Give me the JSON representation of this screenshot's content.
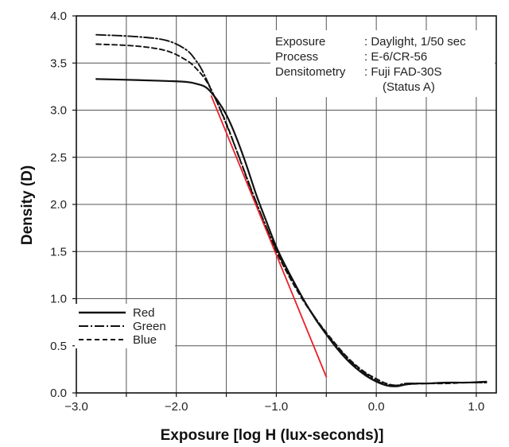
{
  "chart_data": {
    "type": "line",
    "title": "",
    "xlabel": "Exposure [log H (lux-seconds)]",
    "ylabel": "Density (D)",
    "xlim": [
      -3.0,
      1.2
    ],
    "ylim": [
      0.0,
      4.0
    ],
    "grid": true,
    "x_ticks": [
      "−3.0",
      "−2.0",
      "−1.0",
      "0.0",
      "1.0"
    ],
    "y_ticks": [
      "0.0",
      "0.5",
      "1.0",
      "1.5",
      "2.0",
      "2.5",
      "3.0",
      "3.5",
      "4.0"
    ],
    "legend_position": "bottom-left",
    "info_box": {
      "position": "top-right",
      "rows": [
        {
          "label": "Exposure",
          "value": ": Daylight, 1/50 sec"
        },
        {
          "label": "Process",
          "value": ": E-6/CR-56"
        },
        {
          "label": "Densitometry",
          "value": ": Fuji FAD-30S"
        },
        {
          "label": "",
          "value": "(Status A)"
        }
      ]
    },
    "series": [
      {
        "name": "Red",
        "color": "#111111",
        "dash": "solid",
        "x": [
          -2.8,
          -2.4,
          -2.1,
          -1.9,
          -1.8,
          -1.7,
          -1.6,
          -1.5,
          -1.4,
          -1.3,
          -1.2,
          -1.1,
          -1.0,
          -0.9,
          -0.8,
          -0.7,
          -0.6,
          -0.5,
          -0.4,
          -0.3,
          -0.2,
          -0.1,
          0.0,
          0.1,
          0.2,
          0.3,
          0.4,
          0.5,
          0.7,
          0.9,
          1.1
        ],
        "y": [
          3.33,
          3.32,
          3.31,
          3.3,
          3.28,
          3.24,
          3.12,
          2.95,
          2.71,
          2.42,
          2.1,
          1.82,
          1.55,
          1.33,
          1.13,
          0.94,
          0.77,
          0.62,
          0.48,
          0.36,
          0.26,
          0.18,
          0.12,
          0.08,
          0.07,
          0.09,
          0.1,
          0.1,
          0.11,
          0.11,
          0.12
        ]
      },
      {
        "name": "Green",
        "color": "#111111",
        "dash": "dashdot",
        "x": [
          -2.8,
          -2.4,
          -2.1,
          -1.9,
          -1.8,
          -1.75,
          -1.7,
          -1.6,
          -1.5,
          -1.4,
          -1.3,
          -1.2,
          -1.1,
          -1.0,
          -0.9,
          -0.8,
          -0.7,
          -0.6,
          -0.5,
          -0.4,
          -0.3,
          -0.2,
          -0.1,
          0.0,
          0.1,
          0.2,
          0.3,
          0.5,
          0.7,
          0.9,
          1.1
        ],
        "y": [
          3.8,
          3.78,
          3.74,
          3.64,
          3.52,
          3.44,
          3.33,
          3.1,
          2.85,
          2.58,
          2.3,
          2.02,
          1.76,
          1.52,
          1.31,
          1.12,
          0.94,
          0.78,
          0.63,
          0.5,
          0.38,
          0.28,
          0.2,
          0.13,
          0.09,
          0.08,
          0.1,
          0.1,
          0.11,
          0.11,
          0.11
        ]
      },
      {
        "name": "Blue",
        "color": "#111111",
        "dash": "dashed",
        "x": [
          -2.8,
          -2.4,
          -2.1,
          -1.9,
          -1.8,
          -1.7,
          -1.6,
          -1.5,
          -1.4,
          -1.3,
          -1.2,
          -1.1,
          -1.0,
          -0.9,
          -0.8,
          -0.7,
          -0.6,
          -0.5,
          -0.4,
          -0.3,
          -0.2,
          -0.1,
          0.0,
          0.1,
          0.2,
          0.3,
          0.5,
          0.7,
          0.9,
          1.1
        ],
        "y": [
          3.7,
          3.68,
          3.63,
          3.53,
          3.44,
          3.31,
          3.1,
          2.86,
          2.58,
          2.29,
          2.0,
          1.74,
          1.5,
          1.29,
          1.1,
          0.93,
          0.78,
          0.64,
          0.51,
          0.39,
          0.29,
          0.21,
          0.15,
          0.1,
          0.08,
          0.09,
          0.1,
          0.1,
          0.11,
          0.11
        ]
      },
      {
        "name": "",
        "color": "#e8202a",
        "dash": "solid",
        "x": [
          -1.65,
          -0.5
        ],
        "y": [
          3.15,
          0.17
        ]
      }
    ]
  }
}
